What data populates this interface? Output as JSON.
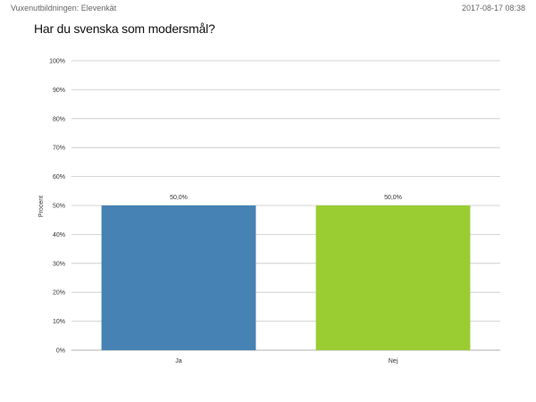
{
  "header": {
    "left": "Vuxenutbildningen: Elevenkät",
    "right": "2017-08-17 08:38"
  },
  "chart_data": {
    "type": "bar",
    "title": "Har du svenska som modersmål?",
    "ylabel": "Procent",
    "xlabel": "",
    "categories": [
      "Ja",
      "Nej"
    ],
    "values": [
      50.0,
      50.0
    ],
    "data_labels": [
      "50,0%",
      "50,0%"
    ],
    "colors": [
      "#4682B4",
      "#9ACD32"
    ],
    "ylim": [
      0,
      100
    ],
    "yticks": [
      0,
      10,
      20,
      30,
      40,
      50,
      60,
      70,
      80,
      90,
      100
    ],
    "ytick_labels": [
      "0%",
      "10%",
      "20%",
      "30%",
      "40%",
      "50%",
      "60%",
      "70%",
      "80%",
      "90%",
      "100%"
    ],
    "grid": true,
    "legend": "none"
  }
}
